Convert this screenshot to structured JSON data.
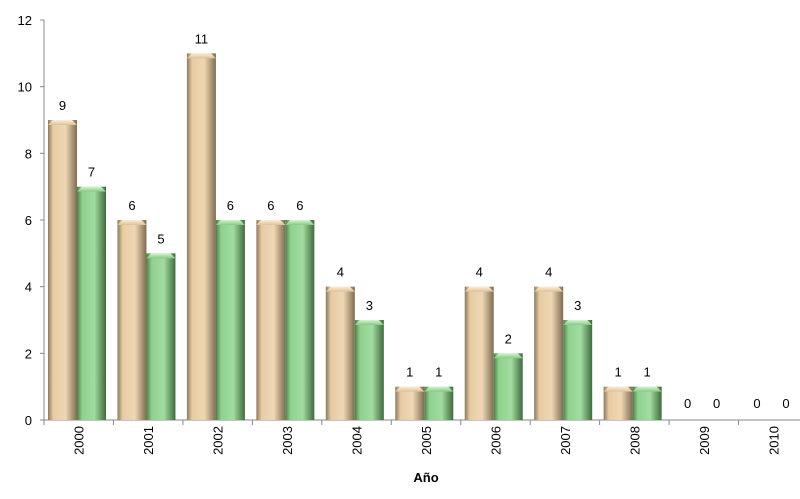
{
  "chart_data": {
    "type": "bar",
    "title": "",
    "xlabel": "Año",
    "ylabel": "",
    "ylim": [
      0,
      12
    ],
    "yticks": [
      0,
      2,
      4,
      6,
      8,
      10,
      12
    ],
    "grid": false,
    "legend": "none",
    "categories": [
      "2000",
      "2001",
      "2002",
      "2003",
      "2004",
      "2005",
      "2006",
      "2007",
      "2008",
      "2009",
      "2010"
    ],
    "series": [
      {
        "values": [
          9,
          6,
          11,
          6,
          4,
          1,
          4,
          4,
          1,
          0,
          0
        ],
        "color": "#e8c9a0"
      },
      {
        "values": [
          7,
          5,
          6,
          6,
          3,
          1,
          2,
          3,
          1,
          0,
          0
        ],
        "color": "#8fd18c"
      }
    ]
  }
}
